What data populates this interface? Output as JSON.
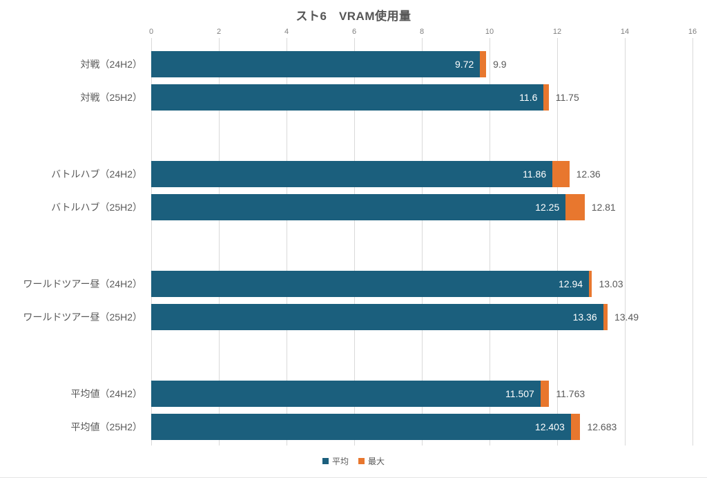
{
  "chart_data": {
    "type": "bar",
    "orientation": "horizontal",
    "title": "スト6　VRAM使用量",
    "categories": [
      "対戦（24H2）",
      "対戦（25H2）",
      "バトルハブ（24H2）",
      "バトルハブ（25H2）",
      "ワールドツアー昼（24H2）",
      "ワールドツアー昼（25H2）",
      "平均値（24H2）",
      "平均値（25H2）"
    ],
    "series": [
      {
        "name": "平均",
        "color": "#1b5f7d",
        "values": [
          9.72,
          11.6,
          11.86,
          12.25,
          12.94,
          13.36,
          11.507,
          12.403
        ],
        "labels": [
          "9.72",
          "11.6",
          "11.86",
          "12.25",
          "12.94",
          "13.36",
          "11.507",
          "12.403"
        ]
      },
      {
        "name": "最大",
        "color": "#e8772e",
        "values": [
          9.9,
          11.75,
          12.36,
          12.81,
          13.03,
          13.49,
          11.763,
          12.683
        ],
        "labels": [
          "9.9",
          "11.75",
          "12.36",
          "12.81",
          "13.03",
          "13.49",
          "11.763",
          "12.683"
        ]
      }
    ],
    "xlim": [
      0,
      16
    ],
    "xticks": [
      "0",
      "2",
      "4",
      "6",
      "8",
      "10",
      "12",
      "14",
      "16"
    ],
    "grid": "vertical",
    "gridline_color": "#d9d9d9",
    "legend_position": "bottom",
    "note": "blue bar = average value with white label inside; orange cap extends to max value with gray label outside"
  },
  "legend": {
    "items": [
      {
        "label": "平均",
        "color": "#1b5f7d"
      },
      {
        "label": "最大",
        "color": "#e8772e"
      }
    ]
  }
}
